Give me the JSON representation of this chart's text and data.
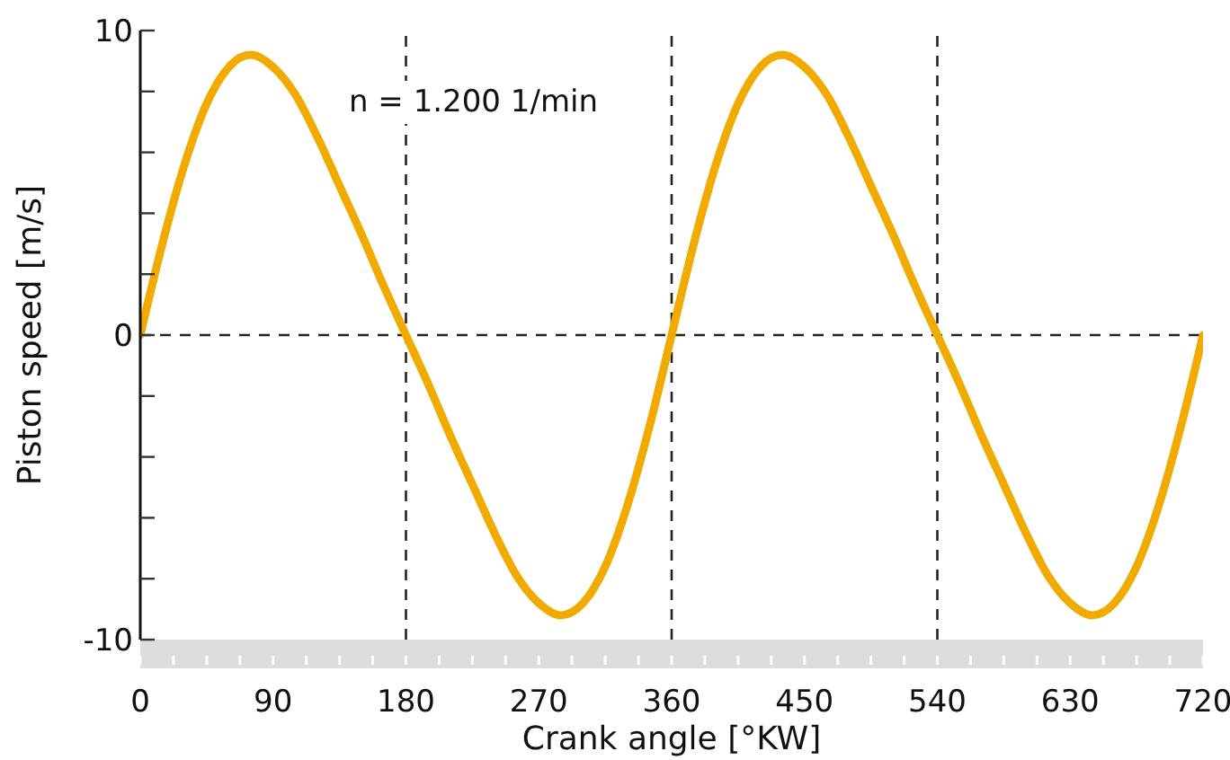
{
  "chart_data": {
    "type": "line",
    "xlabel": "Crank angle [°KW]",
    "ylabel": "Piston speed [m/s]",
    "x": [
      0,
      15,
      30,
      45,
      60,
      75,
      90,
      105,
      120,
      135,
      150,
      165,
      180,
      195,
      210,
      225,
      240,
      255,
      270,
      285,
      300,
      315,
      330,
      345,
      360,
      375,
      390,
      405,
      420,
      435,
      450,
      465,
      480,
      495,
      510,
      525,
      540,
      555,
      570,
      585,
      600,
      615,
      630,
      645,
      660,
      675,
      690,
      705,
      720
    ],
    "series": [
      {
        "color": "#f0aa00",
        "values": [
          0,
          3.0,
          5.6,
          7.6,
          8.8,
          9.2,
          8.8,
          7.9,
          6.5,
          4.9,
          3.3,
          1.6,
          0,
          -1.6,
          -3.3,
          -4.9,
          -6.5,
          -7.9,
          -8.8,
          -9.2,
          -8.8,
          -7.6,
          -5.6,
          -3.0,
          0,
          3.0,
          5.6,
          7.6,
          8.8,
          9.2,
          8.8,
          7.9,
          6.5,
          4.9,
          3.3,
          1.6,
          0,
          -1.6,
          -3.3,
          -4.9,
          -6.5,
          -7.9,
          -8.8,
          -9.2,
          -8.8,
          -7.6,
          -5.6,
          -3.0,
          0
        ]
      }
    ],
    "xlim": [
      0,
      720
    ],
    "xticks": [
      0,
      {
        "value": 22.5,
        "label": null
      },
      {
        "value": 45,
        "label": null
      },
      {
        "value": 67.5,
        "label": null
      },
      90,
      {
        "value": 112.5,
        "label": null
      },
      {
        "value": 135,
        "label": null
      },
      {
        "value": 157.5,
        "label": null
      },
      180,
      {
        "value": 202.5,
        "label": null
      },
      {
        "value": 225,
        "label": null
      },
      {
        "value": 247.5,
        "label": null
      },
      270,
      {
        "value": 292.5,
        "label": null
      },
      {
        "value": 315,
        "label": null
      },
      {
        "value": 337.5,
        "label": null
      },
      360,
      {
        "value": 382.5,
        "label": null
      },
      {
        "value": 405,
        "label": null
      },
      {
        "value": 427.5,
        "label": null
      },
      450,
      {
        "value": 472.5,
        "label": null
      },
      {
        "value": 495,
        "label": null
      },
      {
        "value": 517.5,
        "label": null
      },
      540,
      {
        "value": 562.5,
        "label": null
      },
      {
        "value": 585,
        "label": null
      },
      {
        "value": 607.5,
        "label": null
      },
      630,
      {
        "value": 652.5,
        "label": null
      },
      {
        "value": 675,
        "label": null
      },
      {
        "value": 697.5,
        "label": null
      },
      720
    ],
    "ylim": [
      -10,
      10
    ],
    "yticks": [
      -10,
      {
        "value": -8,
        "label": null
      },
      {
        "value": -6,
        "label": null
      },
      {
        "value": -4,
        "label": null
      },
      {
        "value": -2,
        "label": null
      },
      0,
      {
        "value": 2,
        "label": null
      },
      {
        "value": 4,
        "label": null
      },
      {
        "value": 6,
        "label": null
      },
      {
        "value": 8,
        "label": null
      },
      10
    ],
    "ref_lines": [
      {
        "axis": "y",
        "value": 0,
        "color": "#222222",
        "line_style": "dashed"
      },
      {
        "axis": "x",
        "value": 180,
        "color": "#222222",
        "line_style": "dashed"
      },
      {
        "axis": "x",
        "value": 360,
        "color": "#222222",
        "line_style": "dashed"
      },
      {
        "axis": "x",
        "value": 540,
        "color": "#222222",
        "line_style": "dashed"
      }
    ],
    "annotations": [
      "n = 1.200 1/min"
    ],
    "grid": false,
    "legend": false,
    "marker": "none",
    "line_style": "solid"
  }
}
